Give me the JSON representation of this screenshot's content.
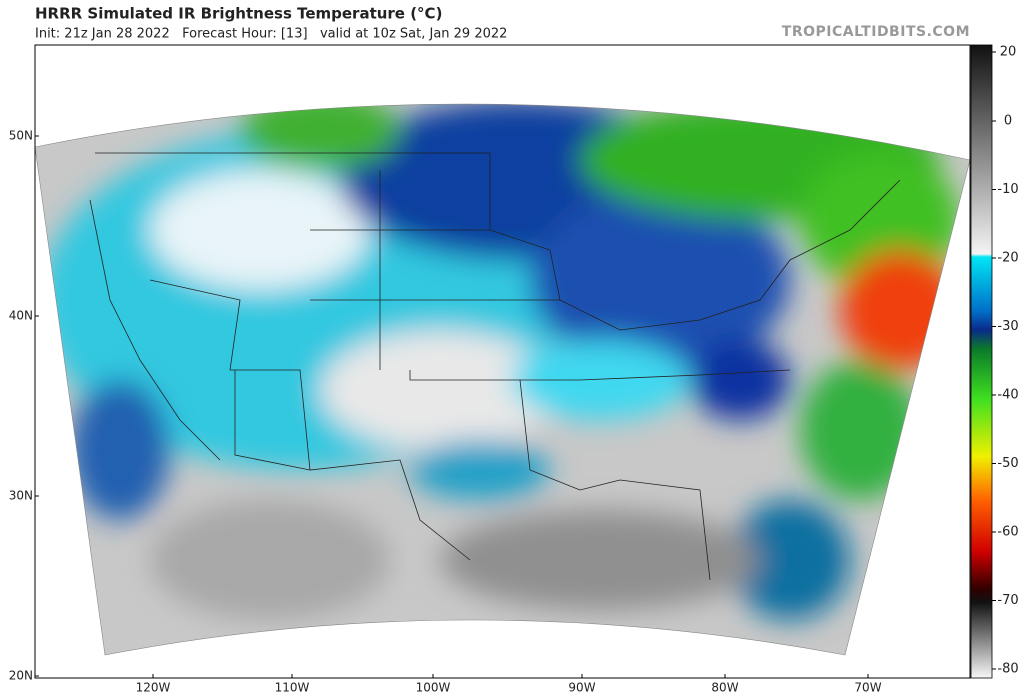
{
  "header": {
    "title": "HRRR Simulated IR Brightness Temperature (°C)",
    "subtitle": "Init: 21z Jan 28 2022   Forecast Hour: [13]   valid at 10z Sat, Jan 29 2022",
    "watermark": "TROPICALTIDBITS.COM"
  },
  "map": {
    "lat_labels": [
      "50N",
      "40N",
      "30N",
      "20N"
    ],
    "lon_labels": [
      "120W",
      "110W",
      "100W",
      "90W",
      "80W",
      "70W"
    ]
  },
  "colorbar": {
    "ticks": [
      20,
      0,
      -10,
      -20,
      -30,
      -40,
      -50,
      -60,
      -70,
      -80
    ]
  }
}
